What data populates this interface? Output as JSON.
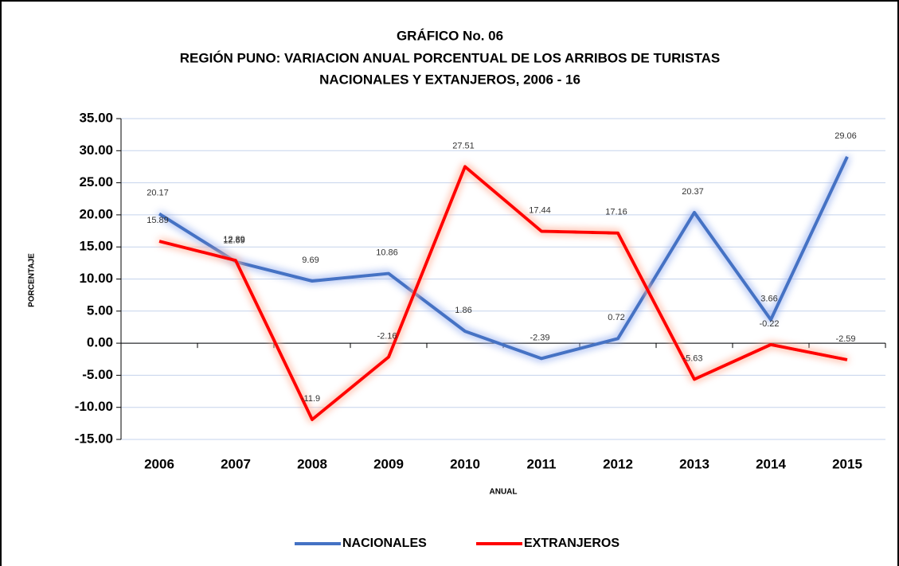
{
  "chart_data": {
    "type": "line",
    "title": [
      "GRÁFICO No. 06",
      "REGIÓN PUNO: VARIACION ANUAL PORCENTUAL DE LOS ARRIBOS DE TURISTAS",
      "NACIONALES Y EXTANJEROS, 2006 - 16"
    ],
    "x_label": "ANUAL",
    "y_label": "PORCENTAJE",
    "categories": [
      "2006",
      "2007",
      "2008",
      "2009",
      "2010",
      "2011",
      "2012",
      "2013",
      "2014",
      "2015"
    ],
    "series": [
      {
        "name": "NACIONALES",
        "color": "#4472c4",
        "glow": "#9db4f0",
        "values": [
          20.17,
          12.69,
          9.69,
          10.86,
          1.86,
          -2.39,
          0.72,
          20.37,
          3.66,
          29.06
        ]
      },
      {
        "name": "EXTRANJEROS",
        "color": "#ff0000",
        "glow": "#ffb199",
        "values": [
          15.89,
          12.89,
          -11.9,
          -2.16,
          27.51,
          17.44,
          17.16,
          -5.63,
          -0.22,
          -2.59
        ]
      }
    ],
    "ylim": [
      -15,
      35
    ],
    "yticks": [
      {
        "value": -15,
        "label": "-15.00"
      },
      {
        "value": -10,
        "label": "-10.00"
      },
      {
        "value": -5,
        "label": "-5.00"
      },
      {
        "value": 0,
        "label": "0.00"
      },
      {
        "value": 5,
        "label": "5.00"
      },
      {
        "value": 10,
        "label": "10.00"
      },
      {
        "value": 15,
        "label": "15.00"
      },
      {
        "value": 20,
        "label": "20.00"
      },
      {
        "value": 25,
        "label": "25.00"
      },
      {
        "value": 30,
        "label": "30.00"
      },
      {
        "value": 35,
        "label": "35.00"
      }
    ],
    "grid": true,
    "legend": "bottom"
  }
}
